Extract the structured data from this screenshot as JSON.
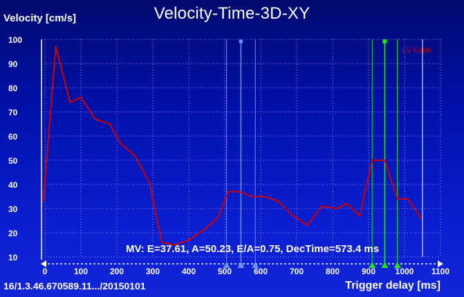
{
  "title": "Velocity-Time-3D-XY",
  "ylabel": "Velocity [cm/s]",
  "xlabel": "Trigger delay [ms]",
  "study_id": "16/1.3.46.670589.11.../20150101",
  "stats": "MV: E=37.61, A=50.23, E/A=0.75, DecTime=573.4 ms",
  "legend": "LV Endo",
  "colors": {
    "series": "#d00000",
    "grid": "#b8c4ff",
    "blue_markers": "#6f92ff",
    "green_markers": "#1fe21f"
  },
  "chart_data": {
    "type": "line",
    "title": "Velocity-Time-3D-XY",
    "xlabel": "Trigger delay [ms]",
    "ylabel": "Velocity [cm/s]",
    "xlim": [
      0,
      1100
    ],
    "ylim": [
      10,
      100
    ],
    "xticks": [
      0,
      100,
      200,
      300,
      400,
      500,
      600,
      700,
      800,
      900,
      1000,
      1100
    ],
    "yticks": [
      10,
      20,
      30,
      40,
      50,
      60,
      70,
      80,
      90,
      100
    ],
    "grid": true,
    "legend_position": "top-right",
    "series": [
      {
        "name": "LV Endo",
        "color": "#d00000",
        "x": [
          -5,
          30,
          70,
          100,
          140,
          180,
          210,
          250,
          290,
          325,
          360,
          400,
          440,
          480,
          510,
          540,
          575,
          610,
          650,
          690,
          730,
          770,
          810,
          840,
          875,
          910,
          945,
          980,
          1010,
          1045
        ],
        "y": [
          33,
          97,
          74,
          76,
          67,
          65,
          57,
          52,
          41,
          16,
          15,
          17,
          21,
          26,
          37,
          37,
          35,
          35,
          33,
          27,
          23,
          31,
          30,
          32,
          27,
          50,
          50,
          34,
          34,
          26
        ]
      }
    ],
    "vertical_markers": {
      "blue": [
        505,
        545,
        585
      ],
      "green": [
        910,
        945,
        980
      ],
      "white": [
        1050
      ]
    }
  }
}
